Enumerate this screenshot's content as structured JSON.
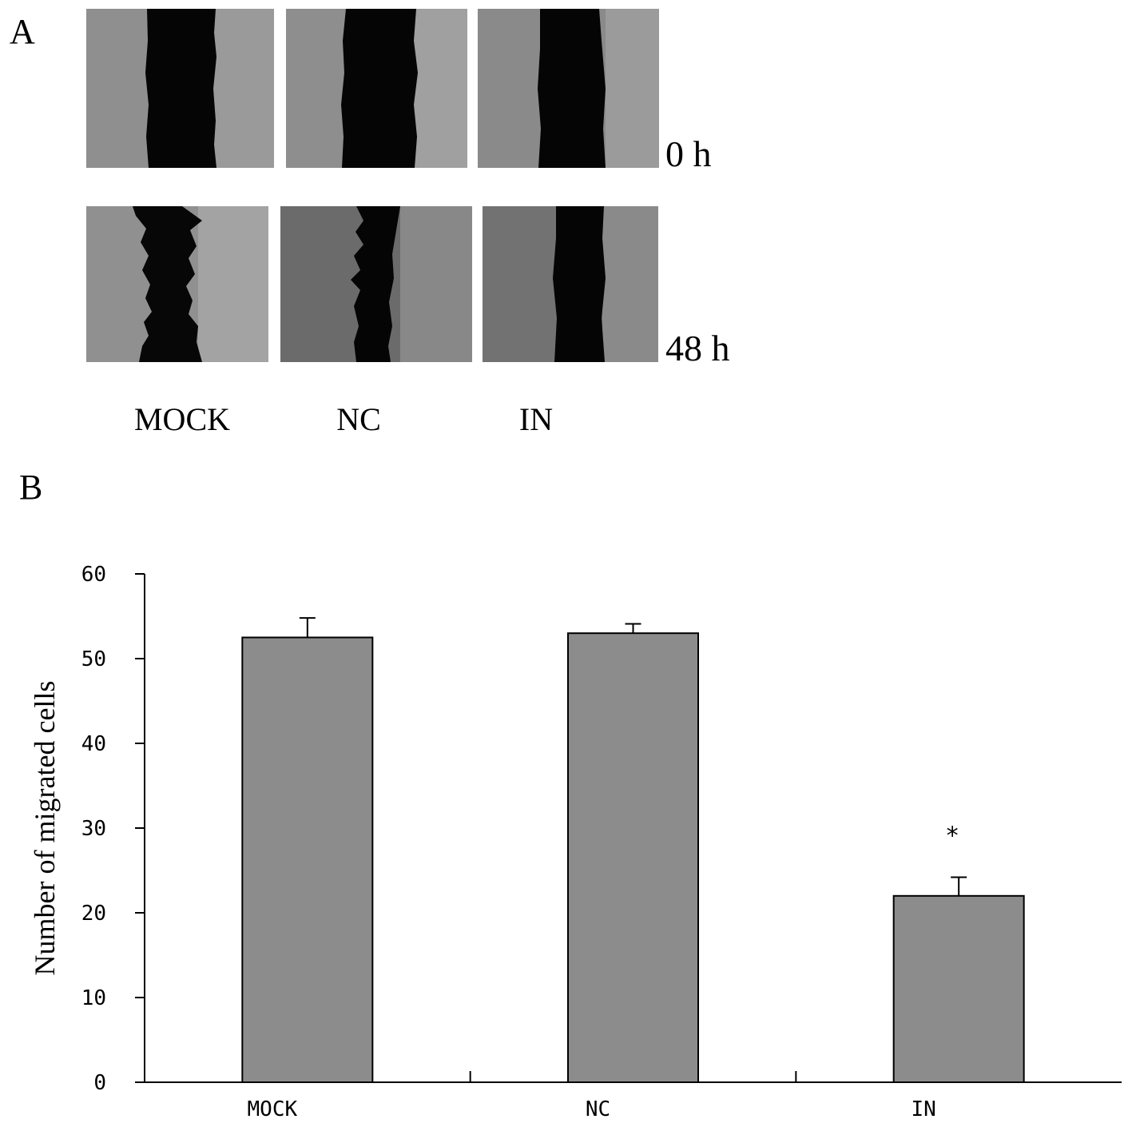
{
  "panel_a": {
    "letter": "A",
    "time_labels": [
      "0 h",
      "48 h"
    ],
    "group_labels": [
      "MOCK",
      "NC",
      "IN"
    ]
  },
  "panel_b": {
    "letter": "B"
  },
  "chart_data": {
    "type": "bar",
    "categories": [
      "MOCK",
      "NC",
      "IN"
    ],
    "values": [
      52.5,
      53,
      22
    ],
    "error": [
      2.3,
      1.1,
      2.2
    ],
    "annotations": [
      {
        "category": "IN",
        "text": "*"
      }
    ],
    "title": "",
    "xlabel": "",
    "ylabel": "Number of migrated cells",
    "ylim": [
      0,
      60
    ],
    "yticks": [
      0,
      10,
      20,
      30,
      40,
      50,
      60
    ],
    "bar_color": "#8c8c8c",
    "grid": false
  }
}
